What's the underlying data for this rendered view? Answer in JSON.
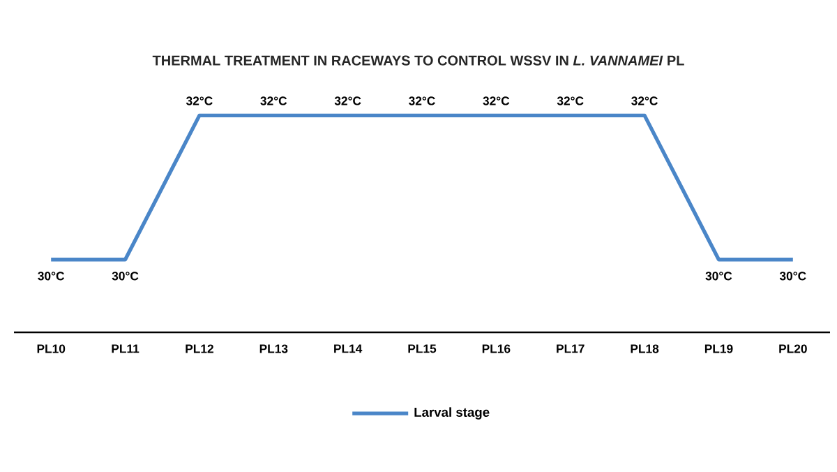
{
  "chart_data": {
    "type": "line",
    "title": "THERMAL TREATMENT IN RACEWAYS TO CONTROL WSSV IN *L. VANNAMEI* PL",
    "categories": [
      "PL10",
      "PL11",
      "PL12",
      "PL13",
      "PL14",
      "PL15",
      "PL16",
      "PL17",
      "PL18",
      "PL19",
      "PL20"
    ],
    "series": [
      {
        "name": "Larval stage",
        "color": "#4a86c8",
        "values": [
          30,
          30,
          32,
          32,
          32,
          32,
          32,
          32,
          32,
          30,
          30
        ],
        "value_labels": [
          "30°C",
          "30°C",
          "32°C",
          "32°C",
          "32°C",
          "32°C",
          "32°C",
          "32°C",
          "32°C",
          "30°C",
          "30°C"
        ]
      }
    ],
    "legend": "bottom",
    "marker": "none",
    "line_style": "solid",
    "grid": false
  }
}
